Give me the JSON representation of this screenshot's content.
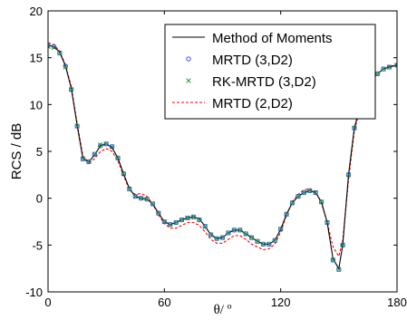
{
  "chart_data": {
    "type": "line",
    "title": "",
    "xlabel": "θ/ º",
    "ylabel": "RCS / dB",
    "xlim": [
      0,
      180
    ],
    "ylim": [
      -10,
      20
    ],
    "xticks": [
      "0",
      "60",
      "120",
      "180"
    ],
    "xtick_values": [
      0,
      60,
      120,
      180
    ],
    "yticks": [
      "-10",
      "-5",
      "0",
      "5",
      "10",
      "15",
      "20"
    ],
    "ytick_values": [
      -10,
      -5,
      0,
      5,
      10,
      15,
      20
    ],
    "grid": false,
    "legend_position": "top-right",
    "series": [
      {
        "name": "Method of Moments",
        "style": "solid-line",
        "color": "#000000",
        "x": [
          0,
          3,
          6,
          9,
          12,
          15,
          18,
          21,
          24,
          27,
          30,
          33,
          36,
          39,
          42,
          45,
          48,
          51,
          54,
          57,
          60,
          63,
          66,
          69,
          72,
          75,
          78,
          81,
          84,
          87,
          90,
          93,
          96,
          99,
          102,
          105,
          108,
          111,
          114,
          117,
          120,
          123,
          126,
          129,
          132,
          135,
          138,
          141,
          144,
          147,
          150,
          152,
          155,
          158,
          161,
          164,
          167,
          170,
          173,
          176,
          180
        ],
        "y": [
          16.3,
          16.2,
          15.6,
          14.1,
          11.7,
          7.8,
          4.2,
          3.9,
          4.6,
          5.6,
          5.8,
          5.4,
          4.3,
          2.6,
          1.0,
          0.2,
          0.0,
          -0.1,
          -0.6,
          -1.6,
          -2.5,
          -2.8,
          -2.6,
          -2.3,
          -2.1,
          -2.0,
          -2.2,
          -3.0,
          -3.9,
          -4.3,
          -4.2,
          -3.7,
          -3.4,
          -3.4,
          -3.8,
          -4.2,
          -4.6,
          -4.9,
          -4.9,
          -4.5,
          -3.3,
          -1.7,
          -0.5,
          0.2,
          0.6,
          0.8,
          0.6,
          -0.4,
          -2.6,
          -6.5,
          -7.5,
          -5.0,
          2.5,
          7.5,
          9.8,
          11.5,
          12.6,
          13.3,
          13.8,
          14.0,
          14.2
        ]
      },
      {
        "name": "MRTD (3,D2)",
        "style": "circle-marker",
        "color": "#1f3fff",
        "x": [
          0,
          3,
          6,
          9,
          12,
          15,
          18,
          21,
          24,
          27,
          30,
          33,
          36,
          39,
          42,
          45,
          48,
          51,
          54,
          57,
          60,
          63,
          66,
          69,
          72,
          75,
          78,
          81,
          84,
          87,
          90,
          93,
          96,
          99,
          102,
          105,
          108,
          111,
          114,
          117,
          120,
          123,
          126,
          129,
          132,
          135,
          138,
          141,
          144,
          147,
          150,
          152,
          155,
          158,
          161,
          164,
          167,
          170,
          173,
          176,
          180
        ],
        "y": [
          16.3,
          16.2,
          15.5,
          14.1,
          11.6,
          7.7,
          4.2,
          3.9,
          4.7,
          5.6,
          5.8,
          5.5,
          4.3,
          2.6,
          1.0,
          0.2,
          0.0,
          -0.1,
          -0.6,
          -1.6,
          -2.5,
          -2.8,
          -2.6,
          -2.3,
          -2.1,
          -2.0,
          -2.3,
          -3.0,
          -3.9,
          -4.3,
          -4.2,
          -3.7,
          -3.4,
          -3.4,
          -3.8,
          -4.2,
          -4.6,
          -4.9,
          -4.9,
          -4.5,
          -3.3,
          -1.7,
          -0.5,
          0.2,
          0.6,
          0.8,
          0.6,
          -0.4,
          -2.6,
          -6.6,
          -7.6,
          -5.0,
          2.5,
          7.5,
          9.8,
          11.5,
          12.6,
          13.3,
          13.8,
          14.0,
          14.2
        ]
      },
      {
        "name": "RK-MRTD (3,D2)",
        "style": "x-marker",
        "color": "#1e8c1e",
        "x": [
          0,
          3,
          6,
          9,
          12,
          15,
          18,
          21,
          24,
          27,
          30,
          33,
          36,
          39,
          42,
          45,
          48,
          51,
          54,
          57,
          60,
          63,
          66,
          69,
          72,
          75,
          78,
          81,
          84,
          87,
          90,
          93,
          96,
          99,
          102,
          105,
          108,
          111,
          114,
          117,
          120,
          123,
          126,
          129,
          132,
          135,
          138,
          141,
          144,
          147,
          150,
          152,
          155,
          158,
          161,
          164,
          167,
          170,
          173,
          176,
          180
        ],
        "y": [
          16.2,
          16.1,
          15.5,
          14.0,
          11.6,
          7.7,
          4.2,
          3.9,
          4.7,
          5.7,
          5.8,
          5.5,
          4.3,
          2.6,
          1.0,
          0.2,
          0.0,
          -0.1,
          -0.6,
          -1.6,
          -2.5,
          -2.8,
          -2.6,
          -2.3,
          -2.1,
          -2.0,
          -2.3,
          -3.0,
          -3.9,
          -4.3,
          -4.2,
          -3.7,
          -3.4,
          -3.4,
          -3.8,
          -4.2,
          -4.6,
          -4.9,
          -4.9,
          -4.5,
          -3.3,
          -1.7,
          -0.5,
          0.2,
          0.6,
          0.8,
          0.6,
          -0.4,
          -2.6,
          -6.6,
          -7.6,
          -5.0,
          2.5,
          7.5,
          9.8,
          11.5,
          12.6,
          13.3,
          13.8,
          14.0,
          14.2
        ]
      },
      {
        "name": "MRTD (2,D2)",
        "style": "dashed-line",
        "color": "#ff0000",
        "x": [
          0,
          3,
          6,
          9,
          12,
          15,
          18,
          21,
          24,
          27,
          30,
          33,
          36,
          39,
          42,
          45,
          48,
          51,
          54,
          57,
          60,
          63,
          66,
          69,
          72,
          75,
          78,
          81,
          84,
          87,
          90,
          93,
          96,
          99,
          102,
          105,
          108,
          111,
          114,
          117,
          120,
          123,
          126,
          129,
          132,
          135,
          138,
          141,
          144,
          147,
          150,
          152,
          155,
          158,
          161,
          164,
          167,
          170,
          173,
          176,
          180
        ],
        "y": [
          16.6,
          16.4,
          15.7,
          14.2,
          11.9,
          8.0,
          4.5,
          3.8,
          4.2,
          5.0,
          5.3,
          5.0,
          4.0,
          2.4,
          0.9,
          0.4,
          0.5,
          0.2,
          -0.6,
          -1.8,
          -2.7,
          -3.2,
          -3.2,
          -2.9,
          -2.6,
          -2.6,
          -2.9,
          -3.6,
          -4.4,
          -4.8,
          -4.8,
          -4.4,
          -4.0,
          -4.0,
          -4.4,
          -4.9,
          -5.2,
          -5.5,
          -5.4,
          -4.9,
          -3.6,
          -1.8,
          -0.4,
          0.4,
          0.9,
          1.0,
          0.7,
          -0.5,
          -2.6,
          -5.2,
          -6.2,
          -4.5,
          2.0,
          7.2,
          9.6,
          11.3,
          12.5,
          13.3,
          13.8,
          14.1,
          14.2
        ]
      }
    ]
  }
}
